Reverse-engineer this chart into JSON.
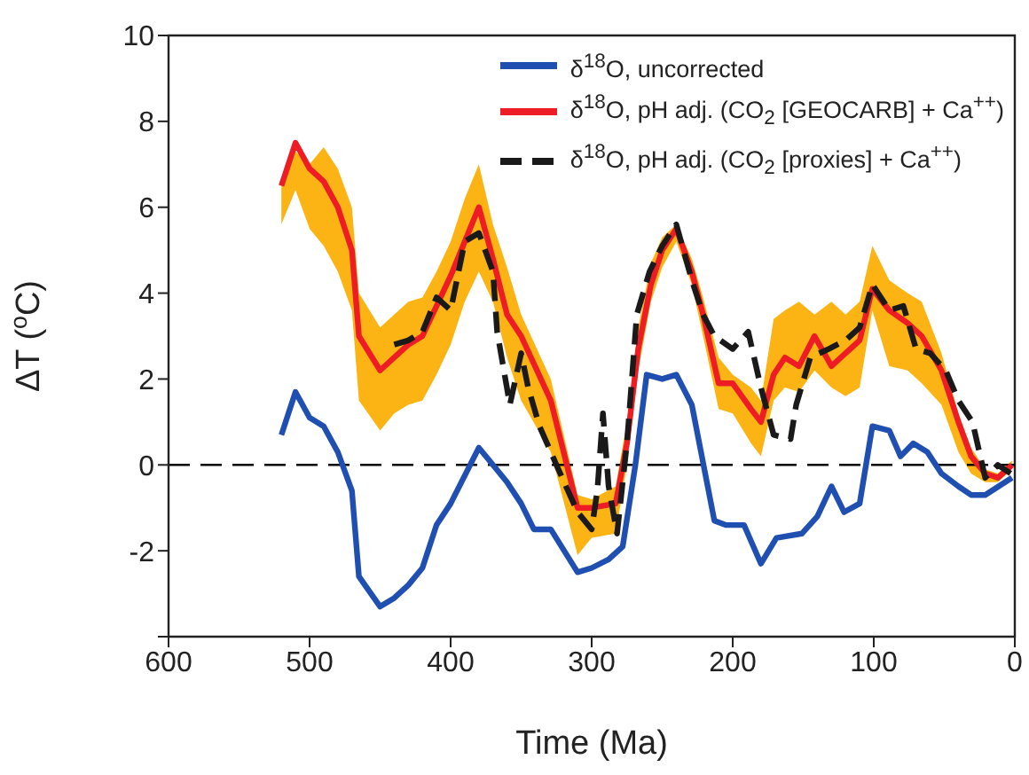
{
  "chart_data": {
    "type": "line",
    "xlabel": "Time (Ma)",
    "ylabel": "ΔT ($^{o}$C)",
    "xlim": [
      600,
      0
    ],
    "xticks": [
      600,
      500,
      400,
      300,
      200,
      100,
      0
    ],
    "ylim": [
      -4,
      10
    ],
    "yticks": [
      {
        "value": -4,
        "label": null
      },
      -2,
      0,
      2,
      4,
      6,
      8,
      10
    ],
    "legend": "top right",
    "marker": "none",
    "ref_lines": [
      {
        "axis": "y",
        "value": 0,
        "label": null,
        "color": "#000000",
        "line_style": "dashed"
      }
    ],
    "series": [
      {
        "name": "δ$^{18}$O, uncorrected",
        "color": "#1f4fb0",
        "line_style": "solid",
        "x": [
          520,
          510,
          500,
          490,
          480,
          470,
          465,
          450,
          440,
          430,
          420,
          410,
          400,
          380,
          370,
          360,
          350,
          341,
          329,
          310,
          300,
          288,
          278,
          269,
          261,
          250,
          240,
          229,
          213,
          205,
          192,
          180,
          169,
          151,
          140,
          130,
          121,
          110,
          101,
          89,
          81,
          72,
          62,
          52,
          40,
          31,
          21,
          2
        ],
        "values": [
          0.7,
          1.7,
          1.1,
          0.9,
          0.3,
          -0.6,
          -2.6,
          -3.3,
          -3.1,
          -2.8,
          -2.4,
          -1.4,
          -0.9,
          0.4,
          0,
          -0.4,
          -0.9,
          -1.5,
          -1.5,
          -2.5,
          -2.4,
          -2.2,
          -1.9,
          0,
          2.1,
          2.0,
          2.1,
          1.4,
          -1.3,
          -1.4,
          -1.4,
          -2.3,
          -1.7,
          -1.6,
          -1.2,
          -0.5,
          -1.1,
          -0.9,
          0.9,
          0.8,
          0.2,
          0.5,
          0.3,
          -0.2,
          -0.5,
          -0.7,
          -0.7,
          -0.3
        ]
      },
      {
        "name": "δ$^{18}$O, pH adj. (CO$_{2}$ [GEOCARB] + Ca$^{++}$)",
        "color": "#ee1c24",
        "line_style": "solid",
        "x": [
          520,
          510,
          500,
          490,
          480,
          470,
          465,
          450,
          440,
          430,
          420,
          410,
          400,
          390,
          380,
          370,
          360,
          350,
          329,
          310,
          300,
          283,
          275,
          267,
          258,
          250,
          240,
          229,
          221,
          210,
          200,
          187,
          180,
          171,
          163,
          153,
          142,
          130,
          120,
          110,
          101,
          89,
          76,
          66,
          52,
          40,
          31,
          21,
          12,
          2
        ],
        "values": [
          6.5,
          7.5,
          6.9,
          6.6,
          6.0,
          5.0,
          3.0,
          2.2,
          2.5,
          2.8,
          3.0,
          3.7,
          4.4,
          5.2,
          6.0,
          4.8,
          3.5,
          3.0,
          1.5,
          -1.0,
          -1.0,
          -0.9,
          0.5,
          2.7,
          4.2,
          5.0,
          5.5,
          4.5,
          3.5,
          1.9,
          1.9,
          1.3,
          1.0,
          2.1,
          2.5,
          2.3,
          3.0,
          2.3,
          2.6,
          2.9,
          4.1,
          3.6,
          3.3,
          3.0,
          2.2,
          1.0,
          0.2,
          -0.2,
          -0.3,
          0.0
        ],
        "lower": [
          5.6,
          6.4,
          5.5,
          5.1,
          4.5,
          3.6,
          1.5,
          0.8,
          1.2,
          1.4,
          1.5,
          2.1,
          2.8,
          3.8,
          4.5,
          3.8,
          2.5,
          1.5,
          0.3,
          -2.1,
          -1.7,
          -1.6,
          0,
          2.2,
          3.8,
          4.6,
          5.2,
          4.2,
          3.0,
          1.3,
          1.2,
          0.5,
          0.2,
          1.5,
          1.8,
          1.7,
          2.2,
          1.8,
          1.6,
          1.8,
          3.6,
          2.3,
          2.2,
          1.9,
          1.4,
          0.3,
          -0.2,
          -0.4,
          -0.4,
          -0.1
        ],
        "upper": [
          6.6,
          7.3,
          7.0,
          7.4,
          6.9,
          6.0,
          4.0,
          3.2,
          3.5,
          3.8,
          3.9,
          4.5,
          5.2,
          6.2,
          7.0,
          5.6,
          4.6,
          3.5,
          2.0,
          -0.7,
          -0.8,
          -0.5,
          1.0,
          3.2,
          4.7,
          5.3,
          5.6,
          4.8,
          3.9,
          2.5,
          2.1,
          1.8,
          1.5,
          3.4,
          3.6,
          3.8,
          3.5,
          3.8,
          3.5,
          3.8,
          5.1,
          4.3,
          4.0,
          3.8,
          2.6,
          1.2,
          0.4,
          -0.1,
          -0.2,
          0.1
        ]
      },
      {
        "name": "δ$^{18}$O, pH adj. (CO$_{2}$ [proxies] + Ca$^{++}$)",
        "color": "#1a1a1a",
        "line_style": "dashed",
        "x": [
          440,
          430,
          420,
          410,
          400,
          390,
          380,
          370,
          367,
          358,
          350,
          345,
          337,
          325,
          310,
          300,
          296,
          292,
          288,
          282,
          275,
          268,
          259,
          250,
          240,
          229,
          221,
          213,
          200,
          189,
          180,
          171,
          159,
          155,
          145,
          132,
          120,
          110,
          101,
          89,
          79,
          70,
          60,
          49,
          40,
          30,
          21,
          12,
          3
        ],
        "values": [
          2.8,
          2.9,
          3.1,
          3.9,
          3.6,
          5.2,
          5.4,
          4.5,
          3.1,
          1.4,
          2.6,
          1.8,
          0.9,
          0,
          -1.1,
          -1.5,
          -0.6,
          1.2,
          -0.5,
          -1.6,
          0.5,
          3.5,
          4.5,
          5.1,
          5.6,
          4.3,
          3.5,
          3.0,
          2.7,
          3.1,
          1.8,
          0.7,
          0.6,
          1.4,
          2.5,
          2.7,
          2.9,
          3.2,
          4.2,
          3.6,
          3.7,
          2.7,
          2.6,
          2.2,
          1.5,
          1.0,
          -0.3,
          0,
          -0.2
        ]
      }
    ]
  }
}
